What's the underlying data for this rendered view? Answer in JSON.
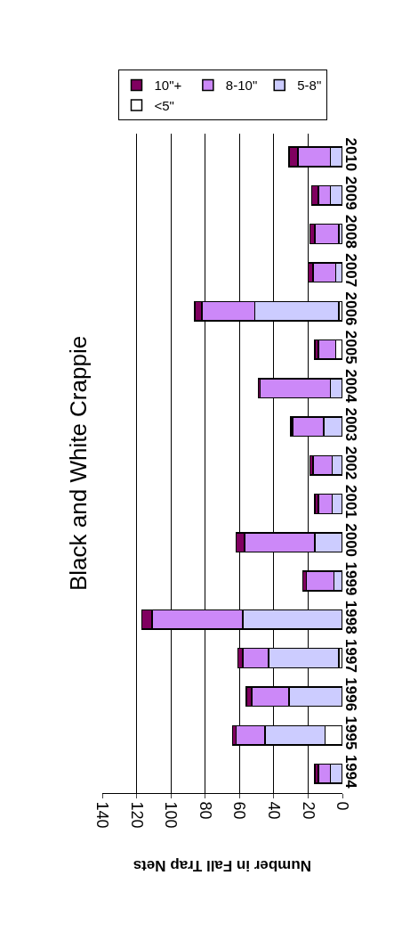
{
  "chart_data": {
    "type": "bar",
    "orientation": "horizontal",
    "stacked": true,
    "title": "Black and White Crappie",
    "xlabel": "Number in Fall Trap Nets",
    "categories": [
      "2010",
      "2009",
      "2008",
      "2007",
      "2006",
      "2005",
      "2004",
      "2003",
      "2002",
      "2001",
      "2000",
      "1999",
      "1998",
      "1997",
      "1996",
      "1995",
      "1994"
    ],
    "series": [
      {
        "name": "<5\"",
        "color": "#ffffff",
        "values": [
          0,
          0,
          0,
          0,
          2,
          4,
          0,
          0,
          0,
          0,
          0,
          0,
          0,
          2,
          0,
          10,
          0
        ]
      },
      {
        "name": "5-8\"",
        "color": "#ccccff",
        "values": [
          7,
          7,
          2,
          4,
          49,
          0,
          7,
          11,
          6,
          6,
          16,
          5,
          58,
          41,
          31,
          35,
          7
        ]
      },
      {
        "name": "8-10\"",
        "color": "#cc88f8",
        "values": [
          19,
          7,
          14,
          13,
          31,
          10,
          41,
          18,
          11,
          8,
          41,
          16,
          53,
          15,
          22,
          17,
          7
        ]
      },
      {
        "name": "10\"+",
        "color": "#800060",
        "values": [
          5,
          4,
          3,
          3,
          4,
          2,
          1,
          1,
          2,
          2,
          5,
          2,
          6,
          3,
          3,
          2,
          2
        ]
      }
    ],
    "xlim": [
      140,
      0
    ],
    "xticks": [
      0,
      20,
      40,
      60,
      80,
      100,
      120,
      140
    ],
    "grid": "x",
    "legend": "top"
  }
}
